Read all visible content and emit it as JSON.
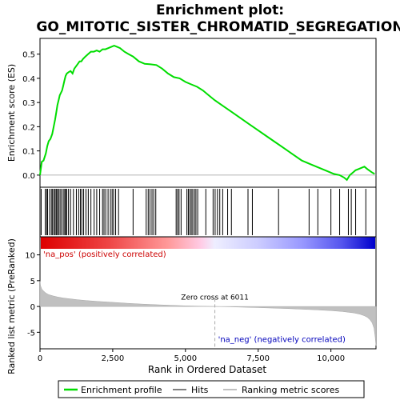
{
  "chart_data": {
    "type": "line",
    "title": "Enrichment plot:\nGO_MITOTIC_SISTER_CHROMATID_SEGREGATION",
    "top_panel": {
      "ylabel": "Enrichment score (ES)",
      "ylim": [
        -0.05,
        0.565
      ],
      "yticks": [
        0.0,
        0.1,
        0.2,
        0.3,
        0.4,
        0.5
      ],
      "ytick_labels": [
        "0.0",
        "0.1",
        "0.2",
        "0.3",
        "0.4",
        "0.5"
      ],
      "grid": false,
      "series": [
        {
          "name": "Enrichment profile",
          "color": "#00dd00",
          "x": [
            0,
            60,
            120,
            200,
            250,
            300,
            360,
            420,
            470,
            520,
            560,
            600,
            640,
            680,
            720,
            760,
            800,
            840,
            880,
            920,
            980,
            1050,
            1120,
            1180,
            1240,
            1300,
            1360,
            1420,
            1480,
            1560,
            1650,
            1750,
            1850,
            1950,
            2050,
            2150,
            2250,
            2350,
            2450,
            2550,
            2650,
            2750,
            2900,
            3050,
            3200,
            3400,
            3600,
            3800,
            4000,
            4200,
            4400,
            4600,
            4800,
            5000,
            5200,
            5400,
            5600,
            5800,
            6000,
            6300,
            6600,
            6900,
            7200,
            7500,
            7800,
            8100,
            8400,
            8700,
            9000,
            9300,
            9600,
            9900,
            10100,
            10300,
            10450,
            10550,
            10650,
            10750,
            10850,
            10950,
            11050,
            11150,
            11250,
            11400,
            11500
          ],
          "y": [
            0.0,
            0.055,
            0.06,
            0.09,
            0.12,
            0.14,
            0.15,
            0.17,
            0.2,
            0.23,
            0.26,
            0.29,
            0.31,
            0.33,
            0.34,
            0.35,
            0.37,
            0.39,
            0.41,
            0.42,
            0.425,
            0.43,
            0.42,
            0.44,
            0.45,
            0.46,
            0.47,
            0.47,
            0.48,
            0.49,
            0.5,
            0.51,
            0.51,
            0.515,
            0.51,
            0.52,
            0.52,
            0.525,
            0.53,
            0.535,
            0.53,
            0.525,
            0.51,
            0.5,
            0.49,
            0.47,
            0.46,
            0.458,
            0.455,
            0.44,
            0.42,
            0.405,
            0.4,
            0.385,
            0.375,
            0.365,
            0.35,
            0.33,
            0.31,
            0.285,
            0.26,
            0.235,
            0.21,
            0.185,
            0.16,
            0.135,
            0.11,
            0.085,
            0.06,
            0.045,
            0.03,
            0.015,
            0.005,
            0.0,
            -0.01,
            -0.02,
            0.0,
            0.01,
            0.02,
            0.025,
            0.03,
            0.035,
            0.025,
            0.012,
            0.005
          ]
        }
      ]
    },
    "hits_panel": {
      "hit_positions": [
        40,
        180,
        230,
        260,
        330,
        390,
        430,
        480,
        520,
        560,
        600,
        640,
        690,
        740,
        800,
        850,
        880,
        920,
        980,
        1050,
        1150,
        1250,
        1330,
        1390,
        1440,
        1500,
        1580,
        1660,
        1750,
        1860,
        1950,
        2050,
        2150,
        2200,
        2260,
        2340,
        2420,
        2480,
        2530,
        2600,
        2700,
        3200,
        3650,
        3720,
        3780,
        3850,
        3910,
        3980,
        4680,
        4730,
        4780,
        4850,
        5050,
        5100,
        5150,
        5200,
        5250,
        5310,
        5360,
        5420,
        5700,
        5950,
        6020,
        6100,
        6180,
        6280,
        6450,
        6580,
        7150,
        7300,
        8200,
        9250,
        9550,
        10000,
        10300,
        10600,
        10700,
        10850,
        11200
      ]
    },
    "ranking_panel": {
      "ylabel": "Ranked list metric (PreRanked)",
      "ylim": [
        -8.2,
        13.5
      ],
      "yticks": [
        -5,
        0,
        5,
        10
      ],
      "ytick_labels": [
        "-5",
        "0",
        "5",
        "10"
      ],
      "metric_curve": {
        "x": [
          0,
          20,
          60,
          120,
          200,
          300,
          450,
          600,
          800,
          1000,
          1300,
          1600,
          2000,
          2500,
          3000,
          3500,
          4000,
          4500,
          5000,
          5500,
          6011,
          6500,
          7000,
          7500,
          8000,
          8500,
          9000,
          9500,
          10000,
          10400,
          10800,
          11000,
          11150,
          11250,
          11350,
          11420,
          11480,
          11520,
          11550
        ],
        "y": [
          4.9,
          4.0,
          3.4,
          3.0,
          2.6,
          2.3,
          2.05,
          1.85,
          1.65,
          1.5,
          1.3,
          1.15,
          0.98,
          0.8,
          0.62,
          0.47,
          0.34,
          0.23,
          0.13,
          0.06,
          0.0,
          -0.06,
          -0.14,
          -0.22,
          -0.31,
          -0.4,
          -0.52,
          -0.65,
          -0.8,
          -0.98,
          -1.25,
          -1.5,
          -1.8,
          -2.1,
          -2.6,
          -3.2,
          -4.2,
          -5.8,
          -7.6
        ]
      },
      "zero_cross_label": "Zero cross at 6011",
      "zero_cross": 6011,
      "pos_label": "'na_pos' (positively correlated)",
      "neg_label": "'na_neg' (negatively correlated)"
    },
    "xlabel": "Rank in Ordered Dataset",
    "xlim": [
      0,
      11550
    ],
    "xticks": [
      0,
      2500,
      5000,
      7500,
      10000
    ],
    "xtick_labels": [
      "0",
      "2,500",
      "5,000",
      "7,500",
      "10,000"
    ],
    "legend": {
      "placement": "bottom",
      "entries": [
        {
          "label": "Enrichment profile",
          "color": "#00dd00"
        },
        {
          "label": "Hits",
          "color": "#000000"
        },
        {
          "label": "Ranking metric scores",
          "color": "#c0c0c0"
        }
      ]
    }
  }
}
